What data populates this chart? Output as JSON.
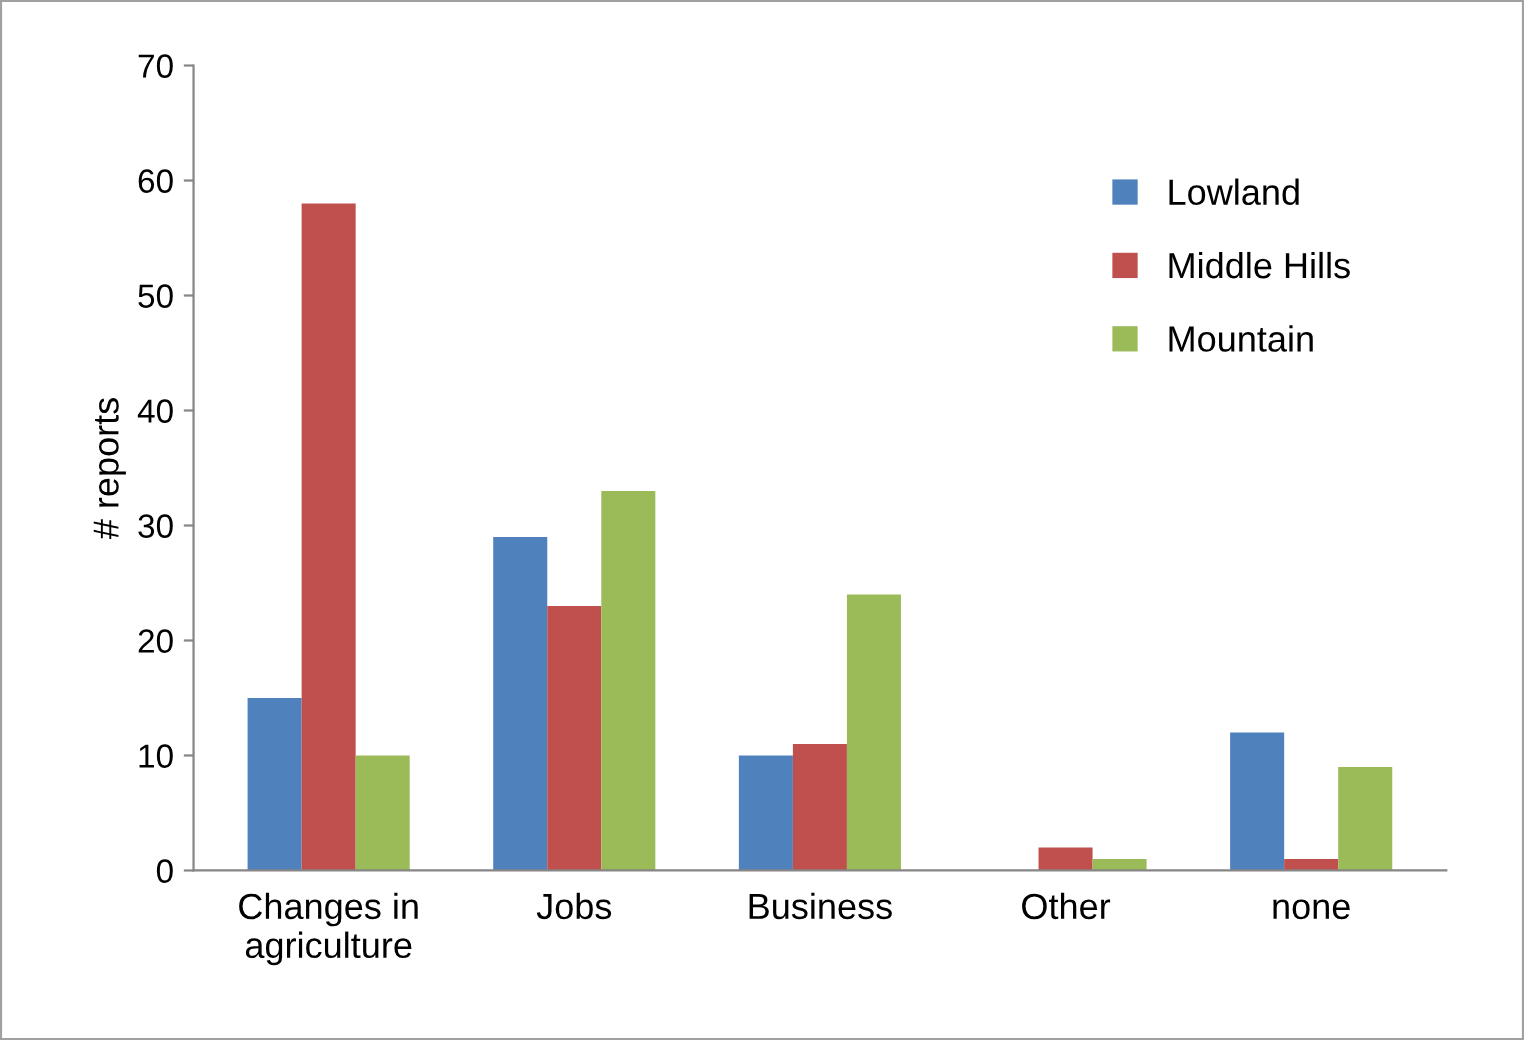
{
  "chart_data": {
    "type": "bar",
    "ylabel": "# reports",
    "categories": [
      "Changes in\nagriculture",
      "Jobs",
      "Business",
      "Other",
      "none"
    ],
    "series": [
      {
        "name": "Lowland",
        "color": "#4f81bd",
        "values": [
          15,
          29,
          10,
          0,
          12
        ]
      },
      {
        "name": "Middle Hills",
        "color": "#c0504d",
        "values": [
          58,
          23,
          11,
          2,
          1
        ]
      },
      {
        "name": "Mountain",
        "color": "#9bbb59",
        "values": [
          10,
          33,
          24,
          1,
          9
        ]
      }
    ],
    "ylim": [
      0,
      70
    ],
    "yticks": [
      0,
      10,
      20,
      30,
      40,
      50,
      60,
      70
    ],
    "grid": false,
    "legend": "top right"
  }
}
